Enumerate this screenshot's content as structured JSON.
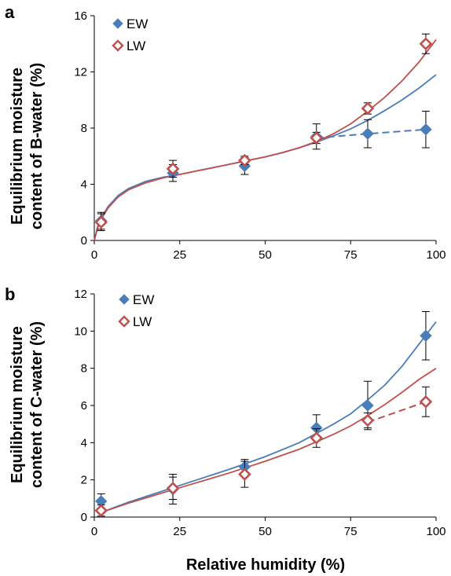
{
  "colors": {
    "EW": "#4a7ebb",
    "LW": "#c0504d",
    "axis": "#000000",
    "error_bar": "#000000"
  },
  "chart_data": [
    {
      "type": "scatter",
      "panel": "a",
      "ylabel_lines": [
        "Equilibrium moisture",
        "content of B-water (%)"
      ],
      "xlabel": "",
      "xlim": [
        0,
        100
      ],
      "ylim": [
        0,
        16
      ],
      "xticks": [
        0,
        25,
        50,
        75,
        100
      ],
      "yticks": [
        0,
        4,
        8,
        12,
        16
      ],
      "legend": "top-left",
      "grid": false,
      "series": [
        {
          "name": "EW",
          "marker": "filled-diamond",
          "color": "#4a7ebb",
          "x": [
            2,
            23,
            44,
            65,
            80,
            97
          ],
          "y": [
            1.4,
            4.8,
            5.3,
            7.4,
            7.6,
            7.9
          ],
          "err": [
            0.6,
            0.6,
            0.6,
            0.9,
            1.0,
            1.3
          ],
          "fit_x": [
            0,
            1,
            2,
            4,
            7,
            10,
            15,
            20,
            25,
            30,
            35,
            40,
            45,
            50,
            55,
            60,
            65,
            70,
            75,
            80,
            85,
            90,
            95,
            100
          ],
          "fit_y": [
            0.0,
            1.0,
            1.6,
            2.4,
            3.2,
            3.7,
            4.2,
            4.5,
            4.7,
            4.95,
            5.2,
            5.45,
            5.7,
            5.95,
            6.25,
            6.6,
            7.0,
            7.45,
            7.95,
            8.55,
            9.25,
            10.0,
            10.85,
            11.8
          ],
          "dashed_x": [
            65,
            80,
            97
          ],
          "dashed_y": [
            7.3,
            7.6,
            7.9
          ]
        },
        {
          "name": "LW",
          "marker": "open-diamond",
          "color": "#c0504d",
          "x": [
            2,
            23,
            44,
            65,
            80,
            97
          ],
          "y": [
            1.3,
            5.1,
            5.7,
            7.3,
            9.4,
            14.0
          ],
          "err": [
            0.6,
            0.6,
            0.3,
            0.4,
            0.4,
            0.7
          ],
          "fit_x": [
            0,
            1,
            2,
            4,
            7,
            10,
            15,
            20,
            25,
            30,
            35,
            40,
            45,
            50,
            55,
            60,
            65,
            70,
            75,
            80,
            85,
            90,
            95,
            100
          ],
          "fit_y": [
            0.0,
            0.9,
            1.5,
            2.3,
            3.1,
            3.6,
            4.1,
            4.45,
            4.7,
            4.95,
            5.2,
            5.45,
            5.7,
            5.95,
            6.25,
            6.6,
            7.05,
            7.6,
            8.3,
            9.2,
            10.2,
            11.35,
            12.7,
            14.3
          ]
        }
      ]
    },
    {
      "type": "scatter",
      "panel": "b",
      "ylabel_lines": [
        "Equilibrium moisture",
        "content of C-water (%)"
      ],
      "xlabel": "Relative humidity (%)",
      "xlim": [
        0,
        100
      ],
      "ylim": [
        0,
        12
      ],
      "xticks": [
        0,
        25,
        50,
        75,
        100
      ],
      "yticks": [
        0,
        2,
        4,
        6,
        8,
        10,
        12
      ],
      "legend": "top-left",
      "grid": false,
      "series": [
        {
          "name": "EW",
          "marker": "filled-diamond",
          "color": "#4a7ebb",
          "x": [
            2,
            23,
            44,
            65,
            80,
            97
          ],
          "y": [
            0.85,
            1.5,
            2.7,
            4.8,
            6.0,
            9.75
          ],
          "err": [
            0.4,
            0.8,
            0.4,
            0.7,
            1.3,
            1.3
          ],
          "fit_x": [
            2,
            10,
            20,
            30,
            40,
            50,
            60,
            70,
            75,
            80,
            85,
            90,
            95,
            100
          ],
          "fit_y": [
            0.25,
            0.8,
            1.4,
            2.0,
            2.6,
            3.25,
            4.0,
            5.0,
            5.55,
            6.3,
            7.1,
            8.1,
            9.3,
            10.5
          ],
          "dashed_x": [],
          "dashed_y": []
        },
        {
          "name": "LW",
          "marker": "open-diamond",
          "color": "#c0504d",
          "x": [
            2,
            23,
            44,
            65,
            80,
            97
          ],
          "y": [
            0.35,
            1.55,
            2.3,
            4.25,
            5.2,
            6.2
          ],
          "err": [
            0.3,
            0.6,
            0.7,
            0.5,
            0.4,
            0.8
          ],
          "fit_x": [
            2,
            10,
            20,
            30,
            40,
            50,
            60,
            70,
            75,
            80,
            85,
            90,
            95,
            100
          ],
          "fit_y": [
            0.25,
            0.75,
            1.3,
            1.85,
            2.4,
            3.0,
            3.65,
            4.45,
            4.9,
            5.45,
            6.05,
            6.7,
            7.4,
            8.0
          ],
          "dashed_x": [
            80,
            97
          ],
          "dashed_y": [
            5.1,
            6.2
          ]
        }
      ]
    }
  ]
}
